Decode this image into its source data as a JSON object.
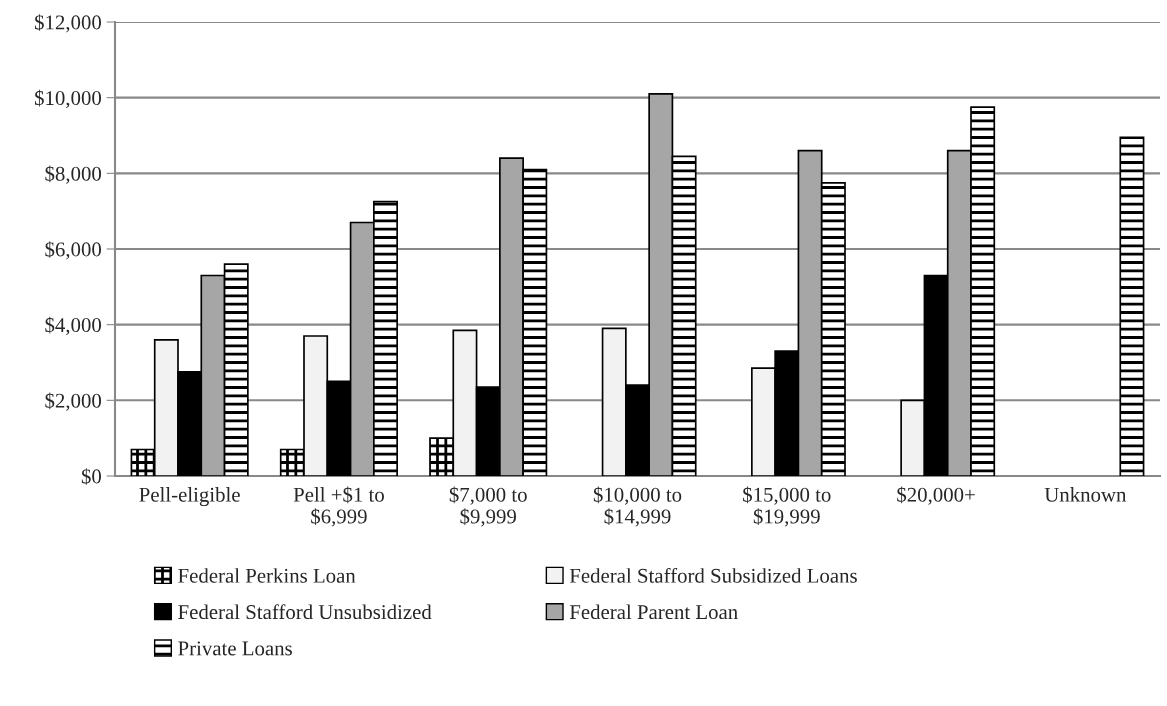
{
  "chart_data": {
    "type": "bar",
    "categories": [
      "Pell-eligible",
      "Pell +$1 to\n$6,999",
      "$7,000 to\n$9,999",
      "$10,000 to\n$14,999",
      "$15,000 to\n$19,999",
      "$20,000+",
      "Unknown"
    ],
    "series": [
      {
        "name": "Federal Perkins Loan",
        "color": "#000000",
        "values": [
          700,
          700,
          1000,
          null,
          null,
          null,
          null
        ]
      },
      {
        "name": "Federal Stafford Subsidized Loans",
        "color": "#f2f2f2",
        "values": [
          3600,
          3700,
          3850,
          3900,
          2850,
          2000,
          null
        ]
      },
      {
        "name": "Federal Stafford Unsubsidized",
        "color": "#000000",
        "values": [
          2750,
          2500,
          2350,
          2400,
          3300,
          5300,
          null
        ]
      },
      {
        "name": "Federal Parent Loan",
        "color": "#a6a6a6",
        "values": [
          5300,
          6700,
          8400,
          10100,
          8600,
          8600,
          null
        ]
      },
      {
        "name": "Private Loans",
        "color": "#000000",
        "values": [
          5600,
          7250,
          8100,
          8450,
          7750,
          9750,
          8950
        ]
      }
    ],
    "ylim": [
      0,
      12000
    ],
    "yticks": [
      {
        "value": 0,
        "label": "$0"
      },
      {
        "value": 2000,
        "label": "$2,000"
      },
      {
        "value": 4000,
        "label": "$4,000"
      },
      {
        "value": 6000,
        "label": "$6,000"
      },
      {
        "value": 8000,
        "label": "$8,000"
      },
      {
        "value": 10000,
        "label": "$10,000"
      },
      {
        "value": 12000,
        "label": "$12,000"
      }
    ],
    "grid": "y",
    "legend": "bottom"
  }
}
